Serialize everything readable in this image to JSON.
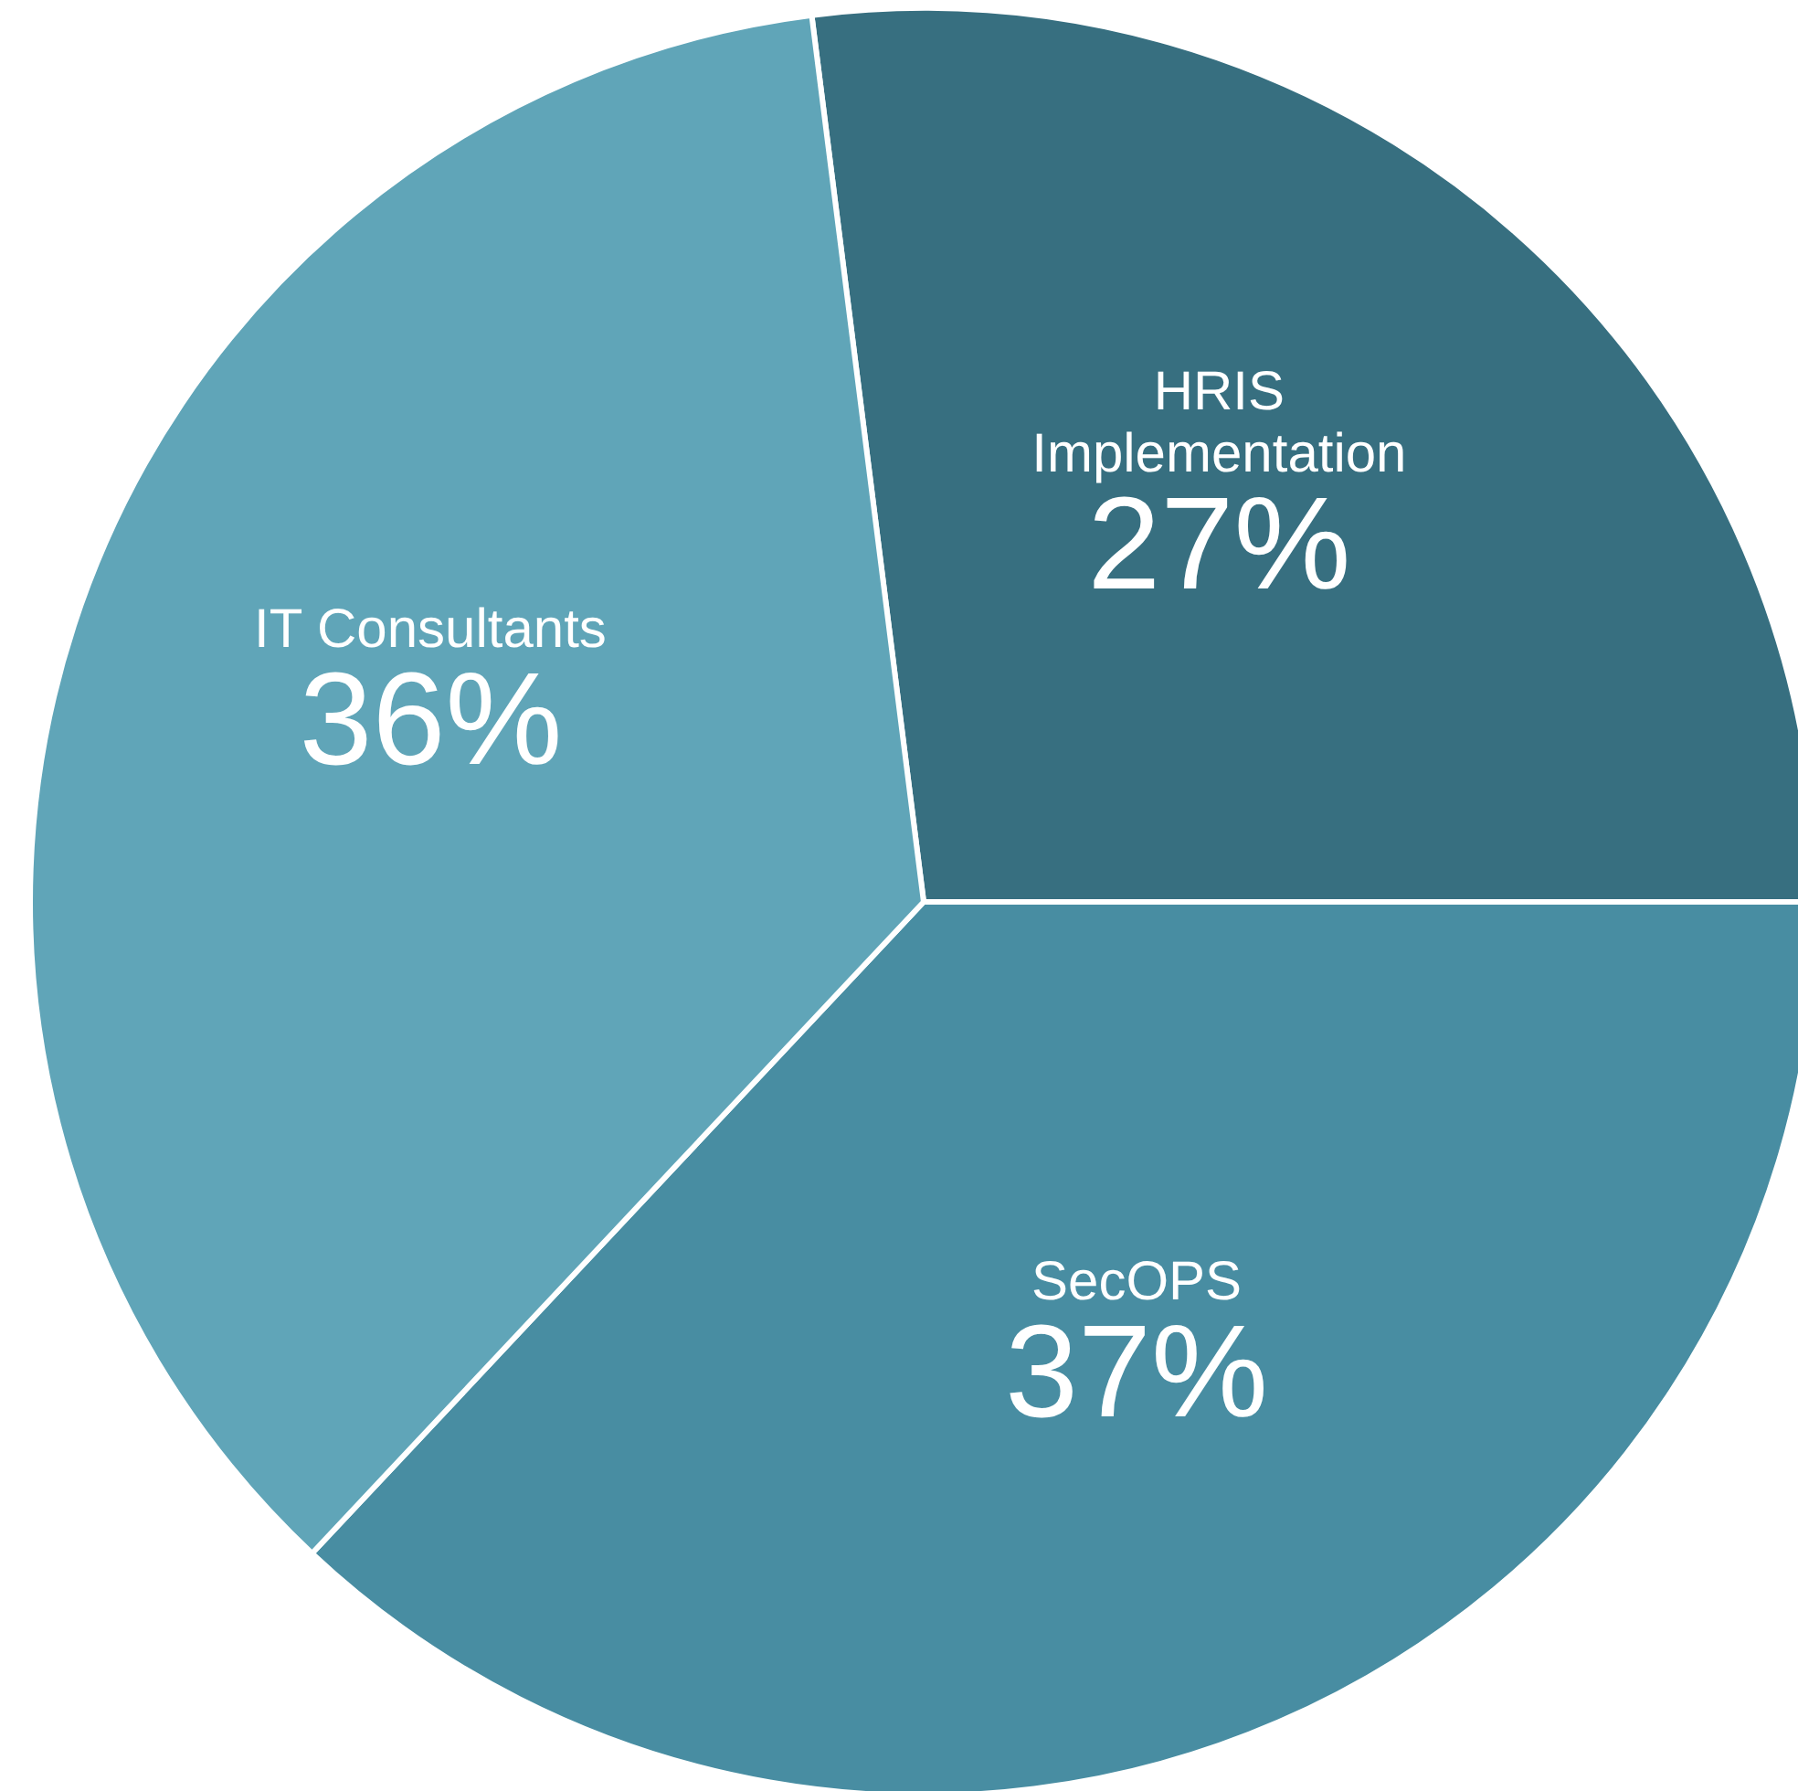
{
  "chart_data": {
    "type": "pie",
    "categories": [
      "HRIS Implementation",
      "SecOPS",
      "IT Consultants"
    ],
    "values": [
      27,
      37,
      36
    ],
    "colors": [
      "#376f80",
      "#488da2",
      "#60a5b8"
    ],
    "value_labels": [
      "27%",
      "37%",
      "36%"
    ]
  }
}
